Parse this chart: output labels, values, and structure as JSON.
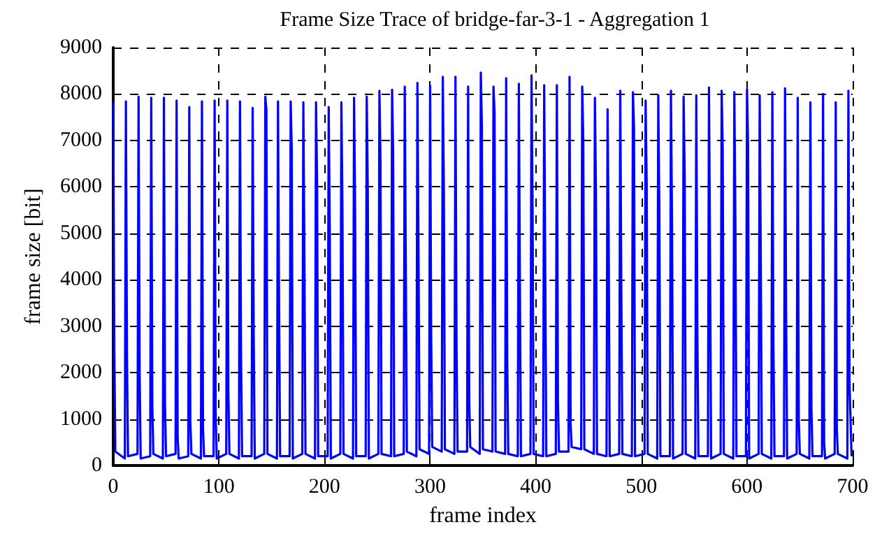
{
  "chart_data": {
    "type": "line",
    "title": "Frame Size Trace of bridge-far-3-1 - Aggregation 1",
    "xlabel": "frame index",
    "ylabel": "frame size [bit]",
    "xlim": [
      0,
      700
    ],
    "xticks": [
      0,
      100,
      200,
      300,
      400,
      500,
      600,
      700
    ],
    "ylim": [
      0,
      9000
    ],
    "yticks": [
      0,
      1000,
      2000,
      3000,
      4000,
      5000,
      6000,
      7000,
      8000,
      9000
    ],
    "grid": true,
    "marker": "none",
    "line_style": "solid",
    "x": [
      0,
      1,
      2,
      11,
      12,
      13,
      14,
      23,
      24,
      25,
      26,
      35,
      36,
      37,
      38,
      47,
      48,
      49,
      50,
      59,
      60,
      61,
      62,
      71,
      72,
      73,
      74,
      83,
      84,
      85,
      86,
      95,
      96,
      97,
      98,
      107,
      108,
      109,
      110,
      119,
      120,
      121,
      122,
      131,
      132,
      133,
      134,
      143,
      144,
      145,
      146,
      155,
      156,
      157,
      158,
      167,
      168,
      169,
      170,
      179,
      180,
      181,
      182,
      191,
      192,
      193,
      194,
      203,
      204,
      205,
      206,
      215,
      216,
      217,
      218,
      227,
      228,
      229,
      230,
      239,
      240,
      241,
      242,
      251,
      252,
      253,
      254,
      263,
      264,
      265,
      266,
      275,
      276,
      277,
      278,
      287,
      288,
      289,
      290,
      299,
      300,
      301,
      302,
      311,
      312,
      313,
      314,
      323,
      324,
      325,
      326,
      335,
      336,
      337,
      338,
      347,
      348,
      349,
      350,
      359,
      360,
      361,
      362,
      371,
      372,
      373,
      374,
      383,
      384,
      385,
      386,
      395,
      396,
      397,
      398,
      407,
      408,
      409,
      410,
      419,
      420,
      421,
      422,
      431,
      432,
      433,
      434,
      443,
      444,
      445,
      446,
      455,
      456,
      457,
      458,
      467,
      468,
      469,
      470,
      479,
      480,
      481,
      482,
      491,
      492,
      493,
      494,
      503,
      504,
      505,
      506,
      515,
      516,
      517,
      518,
      527,
      528,
      529,
      530,
      539,
      540,
      541,
      542,
      551,
      552,
      553,
      554,
      563,
      564,
      565,
      566,
      575,
      576,
      577,
      578,
      587,
      588,
      589,
      590,
      599,
      600,
      601,
      602,
      611,
      612,
      613,
      614,
      623,
      624,
      625,
      626,
      635,
      636,
      637,
      638,
      647,
      648,
      649,
      650,
      659,
      660,
      661,
      662,
      671,
      672,
      673,
      674,
      683,
      684,
      685,
      686,
      695,
      696,
      697,
      699
    ],
    "series": [
      {
        "color": "#0000ff",
        "values": [
          7820,
          2560,
          300,
          150,
          7840,
          2430,
          200,
          250,
          7940,
          1980,
          150,
          200,
          7920,
          1300,
          250,
          150,
          7920,
          1340,
          200,
          250,
          7860,
          600,
          150,
          200,
          7720,
          950,
          250,
          150,
          7840,
          800,
          200,
          200,
          7860,
          1100,
          150,
          250,
          7860,
          1580,
          250,
          150,
          7840,
          2350,
          200,
          200,
          7700,
          2750,
          150,
          250,
          7940,
          7670,
          250,
          150,
          7840,
          3400,
          200,
          200,
          7840,
          6820,
          150,
          250,
          7820,
          4420,
          250,
          150,
          7820,
          6070,
          200,
          200,
          7720,
          5060,
          150,
          250,
          7820,
          5510,
          250,
          150,
          7920,
          5510,
          200,
          200,
          7940,
          5860,
          150,
          250,
          8070,
          6590,
          250,
          200,
          8090,
          6760,
          200,
          250,
          8160,
          4280,
          300,
          200,
          8240,
          4590,
          350,
          250,
          8180,
          2800,
          400,
          300,
          8370,
          5900,
          350,
          250,
          8370,
          2600,
          300,
          300,
          8160,
          1400,
          400,
          250,
          8460,
          7300,
          350,
          300,
          8160,
          7600,
          300,
          250,
          8340,
          2300,
          250,
          200,
          8220,
          3800,
          200,
          250,
          8400,
          5500,
          250,
          200,
          8190,
          4200,
          200,
          250,
          8190,
          1400,
          300,
          300,
          8370,
          900,
          400,
          350,
          8160,
          7000,
          350,
          250,
          7920,
          5900,
          250,
          200,
          7670,
          5000,
          200,
          250,
          8070,
          3800,
          250,
          200,
          8040,
          7300,
          200,
          250,
          7860,
          6100,
          250,
          150,
          7970,
          5500,
          200,
          200,
          8070,
          5200,
          150,
          250,
          7940,
          6200,
          250,
          150,
          7970,
          2900,
          200,
          200,
          8140,
          4500,
          150,
          250,
          8070,
          6800,
          250,
          150,
          8040,
          5300,
          200,
          200,
          8100,
          6900,
          150,
          250,
          7970,
          4600,
          250,
          150,
          8040,
          2600,
          200,
          200,
          8120,
          3400,
          150,
          250,
          7920,
          1000,
          250,
          150,
          7820,
          1200,
          200,
          200,
          8000,
          500,
          150,
          250,
          7820,
          800,
          250,
          150,
          8070,
          1800,
          200
        ]
      }
    ]
  }
}
